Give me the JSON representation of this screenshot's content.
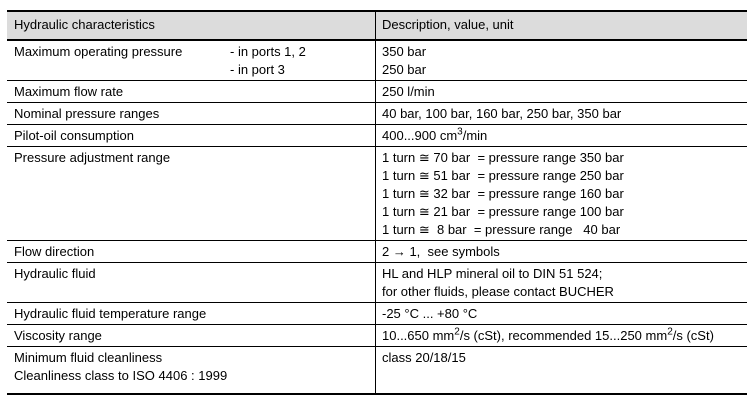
{
  "page": {
    "background": "#ffffff"
  },
  "table": {
    "header_bg": "#dcdcdc",
    "border_color": "#000000",
    "header": {
      "col1": "Hydraulic characteristics",
      "col2": "Description, value, unit"
    },
    "rows": [
      {
        "label": "Maximum operating pressure",
        "sublabels": [
          "- in ports 1, 2",
          "- in port 3"
        ],
        "values": [
          "350 bar",
          "250 bar"
        ]
      },
      {
        "label": "Maximum flow rate",
        "values": [
          "250 l/min"
        ]
      },
      {
        "label": "Nominal pressure ranges",
        "values": [
          "40 bar, 100 bar, 160 bar, 250 bar, 350 bar"
        ]
      },
      {
        "label": "Pilot-oil consumption",
        "value_parts": [
          "400...900 cm",
          "3",
          "/min"
        ]
      },
      {
        "label": "Pressure adjustment range",
        "values": [
          "1 turn ≅ 70 bar  = pressure range 350 bar",
          "1 turn ≅ 51 bar  = pressure range 250 bar",
          "1 turn ≅ 32 bar  = pressure range 160 bar",
          "1 turn ≅ 21 bar  = pressure range 100 bar",
          "1 turn ≅  8 bar  = pressure range   40 bar"
        ]
      },
      {
        "label": "Flow direction",
        "values": [
          "2 → 1,  see symbols"
        ]
      },
      {
        "label": "Hydraulic fluid",
        "values": [
          "HL and HLP mineral oil to DIN 51 524;",
          "for other fluids, please contact BUCHER"
        ]
      },
      {
        "label": "Hydraulic fluid temperature range",
        "values": [
          "-25 °C ... +80 °C"
        ]
      },
      {
        "label": "Viscosity range",
        "value_parts": [
          "10...650 mm",
          "2",
          "/s (cSt), recommended 15...250 mm",
          "2",
          "/s (cSt)"
        ]
      },
      {
        "label": "Minimum fluid cleanliness",
        "label_line2": "Cleanliness class to ISO 4406 : 1999",
        "values": [
          "class 20/18/15"
        ]
      }
    ]
  }
}
